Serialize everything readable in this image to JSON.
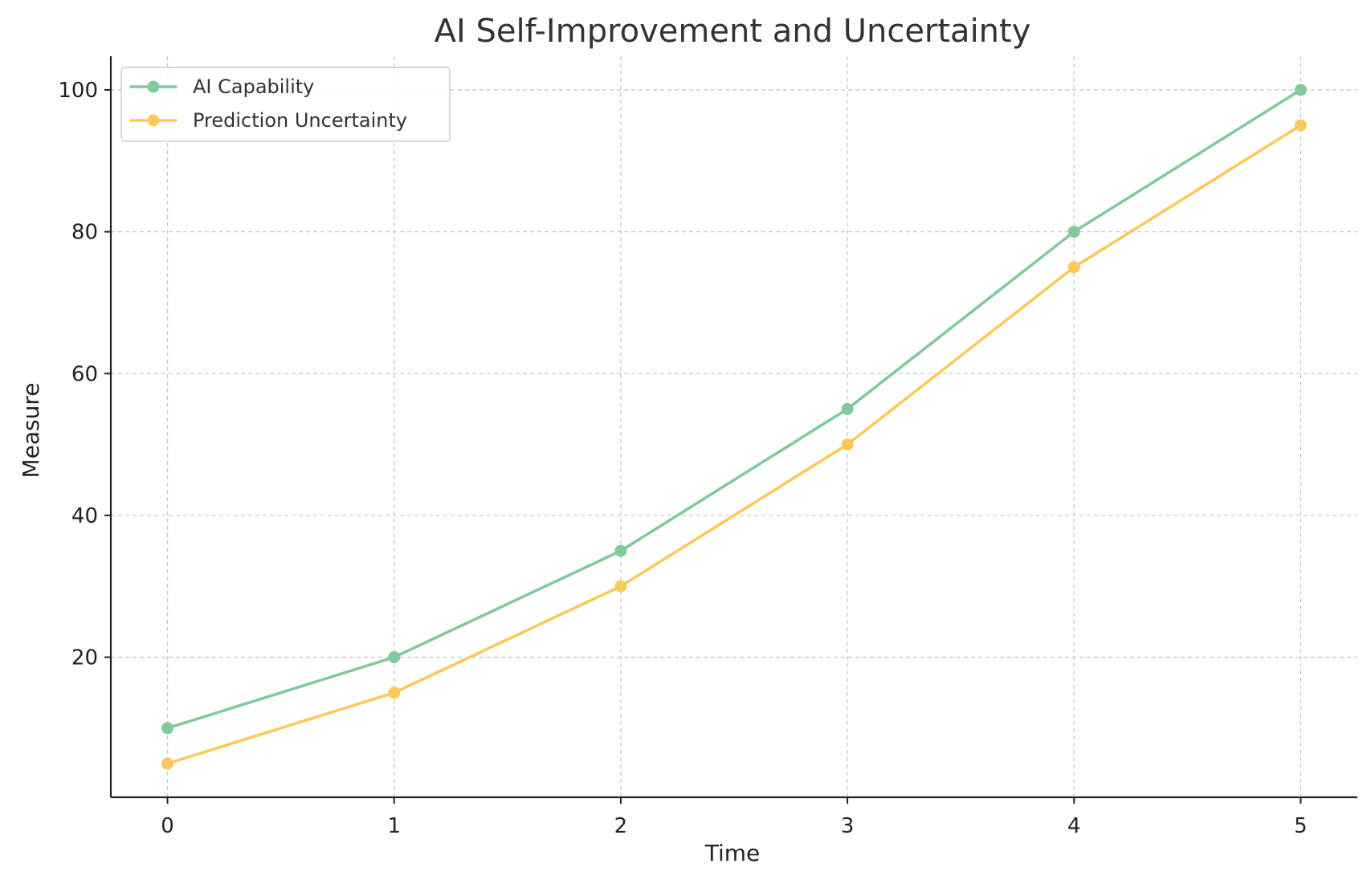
{
  "chart_data": {
    "type": "line",
    "title": "AI Self-Improvement and Uncertainty",
    "xlabel": "Time",
    "ylabel": "Measure",
    "x": [
      0,
      1,
      2,
      3,
      4,
      5
    ],
    "x_ticks": [
      "0",
      "1",
      "2",
      "3",
      "4",
      "5"
    ],
    "y_ticks": [
      "20",
      "40",
      "60",
      "80",
      "100"
    ],
    "xlim": [
      -0.25,
      5.25
    ],
    "ylim": [
      0.25,
      104.75
    ],
    "grid": true,
    "legend_position": "top-left",
    "series": [
      {
        "name": "AI Capability",
        "color": "#82c99d",
        "values": [
          10,
          20,
          35,
          55,
          80,
          100
        ]
      },
      {
        "name": "Prediction Uncertainty",
        "color": "#fbc85c",
        "values": [
          5,
          15,
          30,
          50,
          75,
          95
        ]
      }
    ]
  }
}
